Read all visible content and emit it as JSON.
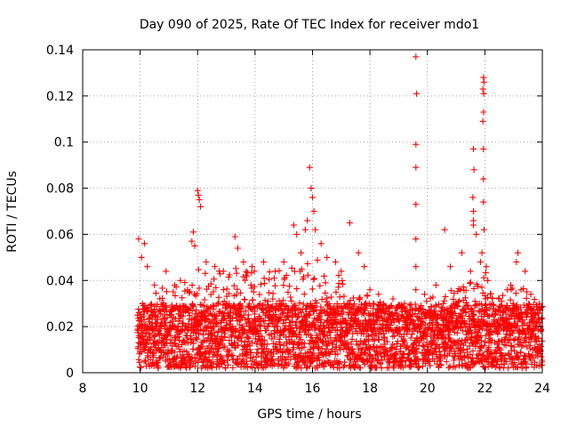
{
  "chart_data": {
    "type": "scatter",
    "title": "Day 090 of 2025, Rate Of TEC Index for receiver mdo1",
    "xlabel": "GPS time / hours",
    "ylabel": "ROTI / TECUs",
    "xlim": [
      8,
      24
    ],
    "ylim": [
      0,
      0.14
    ],
    "xticks": [
      8,
      10,
      12,
      14,
      16,
      18,
      20,
      22,
      24
    ],
    "xtick_labels": [
      "8",
      "10",
      "12",
      "14",
      "16",
      "18",
      "20",
      "22",
      "24"
    ],
    "yticks": [
      0,
      0.02,
      0.04,
      0.06,
      0.08,
      0.1,
      0.12,
      0.14
    ],
    "ytick_labels": [
      "0",
      "0.02",
      "0.04",
      "0.06",
      "0.08",
      "0.1",
      "0.12",
      "0.14"
    ],
    "grid": true,
    "marker": "plus",
    "color": "#ff0000",
    "series": [
      {
        "name": "ROTI",
        "points": [
          [
            9.95,
            0.058
          ],
          [
            10.05,
            0.05
          ],
          [
            10.15,
            0.056
          ],
          [
            10.25,
            0.046
          ],
          [
            10.5,
            0.038
          ],
          [
            10.9,
            0.044
          ],
          [
            11.2,
            0.038
          ],
          [
            11.4,
            0.04
          ],
          [
            11.65,
            0.036
          ],
          [
            11.8,
            0.057
          ],
          [
            11.85,
            0.061
          ],
          [
            11.9,
            0.055
          ],
          [
            12.0,
            0.079
          ],
          [
            12.03,
            0.077
          ],
          [
            12.06,
            0.075
          ],
          [
            12.1,
            0.072
          ],
          [
            12.3,
            0.048
          ],
          [
            12.6,
            0.046
          ],
          [
            12.9,
            0.044
          ],
          [
            13.3,
            0.059
          ],
          [
            13.4,
            0.054
          ],
          [
            13.6,
            0.048
          ],
          [
            13.9,
            0.046
          ],
          [
            14.3,
            0.048
          ],
          [
            14.7,
            0.044
          ],
          [
            15.0,
            0.048
          ],
          [
            15.35,
            0.064
          ],
          [
            15.45,
            0.06
          ],
          [
            15.6,
            0.052
          ],
          [
            15.75,
            0.062
          ],
          [
            15.82,
            0.066
          ],
          [
            15.9,
            0.089
          ],
          [
            15.95,
            0.08
          ],
          [
            16.0,
            0.076
          ],
          [
            16.05,
            0.07
          ],
          [
            16.1,
            0.062
          ],
          [
            16.3,
            0.056
          ],
          [
            16.5,
            0.05
          ],
          [
            16.8,
            0.048
          ],
          [
            17.0,
            0.044
          ],
          [
            17.3,
            0.065
          ],
          [
            17.6,
            0.052
          ],
          [
            17.8,
            0.046
          ],
          [
            18.0,
            0.036
          ],
          [
            18.3,
            0.034
          ],
          [
            18.8,
            0.032
          ],
          [
            19.2,
            0.03
          ],
          [
            19.6,
            0.137
          ],
          [
            19.62,
            0.121
          ],
          [
            19.6,
            0.099
          ],
          [
            19.6,
            0.089
          ],
          [
            19.6,
            0.073
          ],
          [
            19.6,
            0.058
          ],
          [
            19.6,
            0.046
          ],
          [
            19.6,
            0.036
          ],
          [
            19.9,
            0.034
          ],
          [
            20.3,
            0.038
          ],
          [
            20.6,
            0.062
          ],
          [
            20.8,
            0.046
          ],
          [
            21.2,
            0.052
          ],
          [
            21.5,
            0.044
          ],
          [
            21.6,
            0.097
          ],
          [
            21.62,
            0.088
          ],
          [
            21.58,
            0.076
          ],
          [
            21.6,
            0.07
          ],
          [
            21.6,
            0.066
          ],
          [
            21.6,
            0.064
          ],
          [
            21.7,
            0.06
          ],
          [
            21.85,
            0.048
          ],
          [
            21.9,
            0.052
          ],
          [
            21.95,
            0.128
          ],
          [
            21.97,
            0.126
          ],
          [
            21.93,
            0.123
          ],
          [
            21.96,
            0.121
          ],
          [
            21.95,
            0.113
          ],
          [
            21.93,
            0.109
          ],
          [
            21.95,
            0.097
          ],
          [
            21.95,
            0.084
          ],
          [
            21.95,
            0.074
          ],
          [
            21.97,
            0.062
          ],
          [
            22.05,
            0.046
          ],
          [
            22.1,
            0.04
          ],
          [
            22.5,
            0.032
          ],
          [
            22.9,
            0.038
          ],
          [
            23.1,
            0.048
          ],
          [
            23.15,
            0.052
          ],
          [
            23.4,
            0.044
          ],
          [
            23.6,
            0.034
          ],
          [
            23.9,
            0.03
          ]
        ],
        "dense_band": {
          "x_range": [
            9.9,
            24
          ],
          "typical_range": [
            0.002,
            0.03
          ],
          "upper_envelope": [
            [
              9.9,
              0.03
            ],
            [
              10.5,
              0.035
            ],
            [
              11.0,
              0.04
            ],
            [
              11.5,
              0.042
            ],
            [
              12.0,
              0.045
            ],
            [
              12.5,
              0.044
            ],
            [
              13.0,
              0.045
            ],
            [
              13.5,
              0.046
            ],
            [
              14.0,
              0.044
            ],
            [
              14.5,
              0.045
            ],
            [
              15.0,
              0.046
            ],
            [
              15.5,
              0.048
            ],
            [
              16.0,
              0.05
            ],
            [
              16.5,
              0.047
            ],
            [
              17.0,
              0.043
            ],
            [
              17.5,
              0.04
            ],
            [
              18.0,
              0.033
            ],
            [
              18.5,
              0.03
            ],
            [
              19.0,
              0.028
            ],
            [
              19.5,
              0.03
            ],
            [
              20.0,
              0.032
            ],
            [
              20.5,
              0.035
            ],
            [
              21.0,
              0.036
            ],
            [
              21.5,
              0.04
            ],
            [
              22.0,
              0.044
            ],
            [
              22.5,
              0.034
            ],
            [
              23.0,
              0.038
            ],
            [
              23.5,
              0.036
            ],
            [
              24.0,
              0.03
            ]
          ]
        }
      }
    ]
  }
}
